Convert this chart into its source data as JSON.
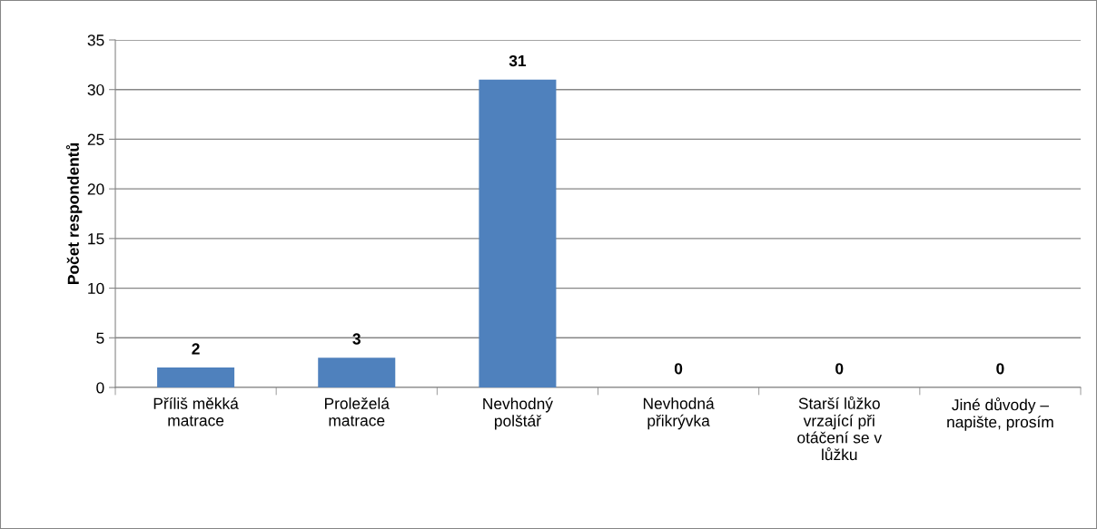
{
  "chart_data": {
    "type": "bar",
    "ylabel": "Počet respondentů",
    "categories": [
      "Příliš měkká\nmatrace",
      "Proleželá\nmatrace",
      "Nevhodný\npolštář",
      "Nevhodná\npřikrývka",
      "Starší lůžko\nvrzající při\notáčení se v\nlůžku",
      "Jiné důvody –\nnapište, prosím"
    ],
    "values": [
      2,
      3,
      31,
      0,
      0,
      0
    ],
    "color": "#4f81bd",
    "ylim": [
      0,
      35
    ],
    "yticks": [
      0,
      5,
      10,
      15,
      20,
      25,
      30,
      35
    ],
    "grid": "y",
    "data_labels": true,
    "legend": false
  }
}
